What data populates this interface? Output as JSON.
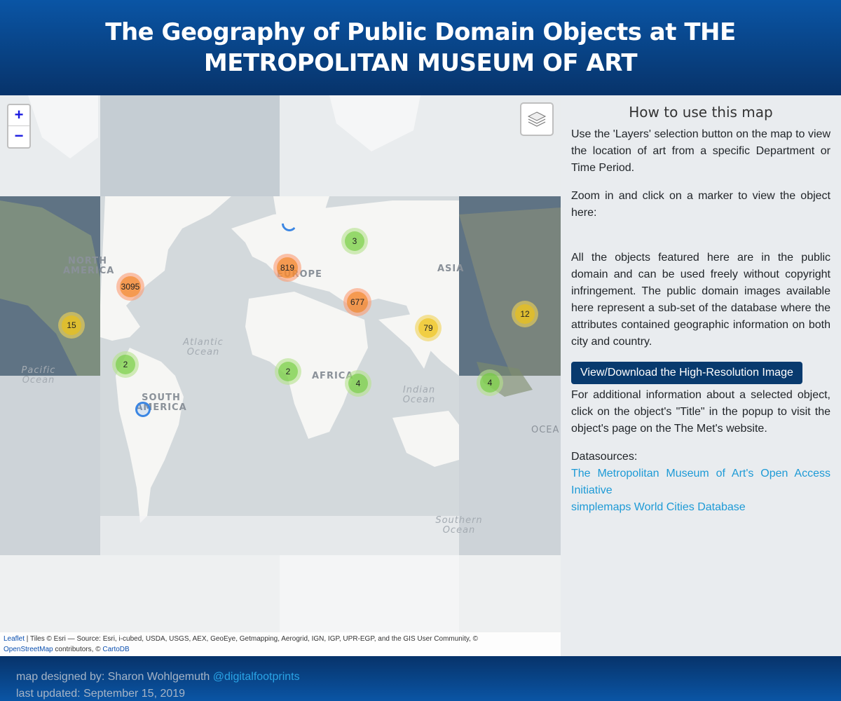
{
  "header": {
    "title": "The Geography of Public Domain Objects at THE METROPOLITAN MUSEUM OF ART"
  },
  "map": {
    "zoom_in_label": "+",
    "zoom_out_label": "−",
    "layers_icon": "layers-icon",
    "labels": {
      "north_america": "NORTH AMERICA",
      "south_america": "SOUTH AMERICA",
      "europe": "EUROPE",
      "asia": "ASIA",
      "africa": "AFRICA",
      "atlantic": "Atlantic Ocean",
      "pacific": "Pacific Ocean",
      "indian": "Indian Ocean",
      "southern": "Southern Ocean",
      "ocea": "OCEA"
    },
    "clusters": [
      {
        "count": "3095",
        "color": "orange"
      },
      {
        "count": "819",
        "color": "orange"
      },
      {
        "count": "677",
        "color": "orange"
      },
      {
        "count": "3",
        "color": "green"
      },
      {
        "count": "15",
        "color": "yellow"
      },
      {
        "count": "79",
        "color": "yellow"
      },
      {
        "count": "12",
        "color": "yellow"
      },
      {
        "count": "2",
        "color": "green"
      },
      {
        "count": "2",
        "color": "green"
      },
      {
        "count": "4",
        "color": "green"
      },
      {
        "count": "4",
        "color": "green"
      }
    ],
    "attribution": {
      "leaflet": "Leaflet",
      "tiles": " | Tiles © Esri — Source: Esri, i-cubed, USDA, USGS, AEX, GeoEye, Getmapping, Aerogrid, IGN, IGP, UPR-EGP, and the GIS User Community, © ",
      "osm": "OpenStreetMap",
      "contributors": " contributors, © ",
      "carto": "CartoDB"
    }
  },
  "sidebar": {
    "heading": "How to use this map",
    "para1": "Use the 'Layers' selection button on the map to view the location of art from a specific Department or Time Period.",
    "para2": "Zoom in and click on a marker to view the object here:",
    "para3": "All the objects featured here are in the public domain and can be used freely without copyright infringement. The public domain images available here represent a sub-set of the database where the attributes contained geographic information on both city and country.",
    "button": "View/Download the High-Resolution Image",
    "para4": "For additional information about a selected object, click on the object's \"Title\" in the popup to visit the object's page on the The Met's website.",
    "datasources_label": "Datasources:",
    "source1": "The Metropolitan Museum of Art's Open Access Initiative",
    "source2": "simplemaps World Cities Database"
  },
  "footer": {
    "designed_by": "map designed by: Sharon Wohlgemuth ",
    "handle": "@digitalfootprints",
    "updated": "last updated: September 15, 2019"
  }
}
